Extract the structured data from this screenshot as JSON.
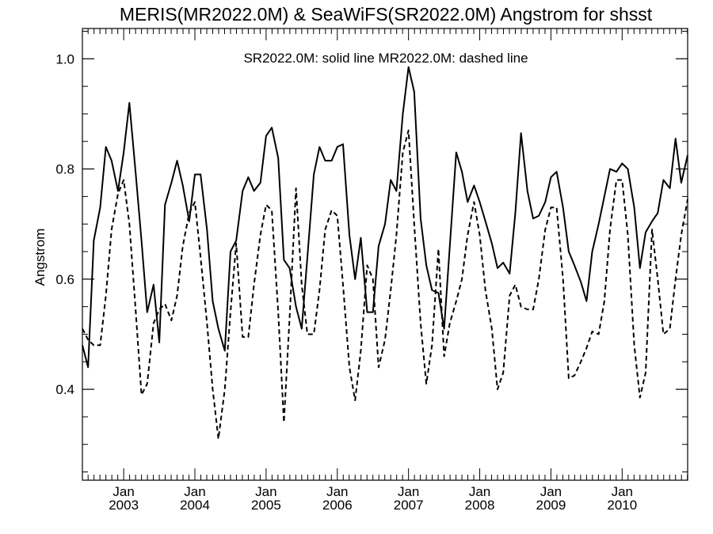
{
  "chart_data": {
    "type": "line",
    "title": "MERIS(MR2022.0M) & SeaWiFS(SR2022.0M)  Angstrom for shsst",
    "ylabel": "Angstrom",
    "legend_note": "SR2022.0M: solid line   MR2022.0M: dashed line",
    "xlim": [
      2002.42,
      2010.92
    ],
    "ylim": [
      0.235,
      1.055
    ],
    "y_ticks": [
      0.4,
      0.6,
      0.8,
      1.0
    ],
    "y_tick_labels": [
      "0.4",
      "0.6",
      "0.8",
      "1.0"
    ],
    "x_ticks": [
      {
        "x": 2003.0,
        "month": "Jan",
        "year": "2003"
      },
      {
        "x": 2004.0,
        "month": "Jan",
        "year": "2004"
      },
      {
        "x": 2005.0,
        "month": "Jan",
        "year": "2005"
      },
      {
        "x": 2006.0,
        "month": "Jan",
        "year": "2006"
      },
      {
        "x": 2007.0,
        "month": "Jan",
        "year": "2007"
      },
      {
        "x": 2008.0,
        "month": "Jan",
        "year": "2008"
      },
      {
        "x": 2009.0,
        "month": "Jan",
        "year": "2009"
      },
      {
        "x": 2010.0,
        "month": "Jan",
        "year": "2010"
      }
    ],
    "x_minor_per_year": 12,
    "y_minor_step": 0.05,
    "grid": false,
    "series": [
      {
        "name": "SR2022.0M",
        "style": "solid",
        "color": "#000000",
        "x": [
          2002.42,
          2002.5,
          2002.58,
          2002.67,
          2002.75,
          2002.83,
          2002.92,
          2003.0,
          2003.08,
          2003.17,
          2003.25,
          2003.33,
          2003.42,
          2003.5,
          2003.58,
          2003.67,
          2003.75,
          2003.83,
          2003.92,
          2004.0,
          2004.08,
          2004.17,
          2004.25,
          2004.33,
          2004.42,
          2004.5,
          2004.58,
          2004.67,
          2004.75,
          2004.83,
          2004.92,
          2005.0,
          2005.08,
          2005.17,
          2005.25,
          2005.33,
          2005.42,
          2005.5,
          2005.58,
          2005.67,
          2005.75,
          2005.83,
          2005.92,
          2006.0,
          2006.08,
          2006.17,
          2006.25,
          2006.33,
          2006.42,
          2006.5,
          2006.58,
          2006.67,
          2006.75,
          2006.83,
          2006.92,
          2007.0,
          2007.08,
          2007.17,
          2007.25,
          2007.33,
          2007.42,
          2007.5,
          2007.58,
          2007.67,
          2007.75,
          2007.83,
          2007.92,
          2008.0,
          2008.08,
          2008.17,
          2008.25,
          2008.33,
          2008.42,
          2008.5,
          2008.58,
          2008.67,
          2008.75,
          2008.83,
          2008.92,
          2009.0,
          2009.08,
          2009.17,
          2009.25,
          2009.33,
          2009.42,
          2009.5,
          2009.58,
          2009.67,
          2009.75,
          2009.83,
          2009.92,
          2010.0,
          2010.08,
          2010.17,
          2010.25,
          2010.33,
          2010.42,
          2010.5,
          2010.58,
          2010.67,
          2010.75,
          2010.83,
          2010.92
        ],
        "values": [
          0.48,
          0.44,
          0.67,
          0.73,
          0.84,
          0.815,
          0.76,
          0.83,
          0.92,
          0.79,
          0.67,
          0.54,
          0.59,
          0.485,
          0.735,
          0.775,
          0.815,
          0.77,
          0.705,
          0.79,
          0.79,
          0.69,
          0.56,
          0.51,
          0.47,
          0.65,
          0.67,
          0.76,
          0.785,
          0.76,
          0.775,
          0.86,
          0.875,
          0.82,
          0.635,
          0.62,
          0.55,
          0.51,
          0.64,
          0.79,
          0.84,
          0.815,
          0.815,
          0.84,
          0.845,
          0.68,
          0.6,
          0.675,
          0.54,
          0.54,
          0.66,
          0.7,
          0.78,
          0.76,
          0.9,
          0.985,
          0.94,
          0.71,
          0.625,
          0.58,
          0.575,
          0.51,
          0.66,
          0.83,
          0.795,
          0.74,
          0.77,
          0.74,
          0.705,
          0.665,
          0.62,
          0.63,
          0.61,
          0.72,
          0.865,
          0.76,
          0.71,
          0.715,
          0.74,
          0.785,
          0.795,
          0.73,
          0.65,
          0.625,
          0.595,
          0.56,
          0.65,
          0.7,
          0.75,
          0.8,
          0.795,
          0.81,
          0.8,
          0.73,
          0.62,
          0.685,
          0.705,
          0.72,
          0.78,
          0.765,
          0.855,
          0.775,
          0.825
        ]
      },
      {
        "name": "MR2022.0M",
        "style": "dashed",
        "color": "#000000",
        "x": [
          2002.42,
          2002.5,
          2002.58,
          2002.67,
          2002.75,
          2002.83,
          2002.92,
          2003.0,
          2003.08,
          2003.17,
          2003.25,
          2003.33,
          2003.42,
          2003.5,
          2003.58,
          2003.67,
          2003.75,
          2003.83,
          2003.92,
          2004.0,
          2004.08,
          2004.17,
          2004.25,
          2004.33,
          2004.42,
          2004.5,
          2004.58,
          2004.67,
          2004.75,
          2004.83,
          2004.92,
          2005.0,
          2005.08,
          2005.17,
          2005.25,
          2005.33,
          2005.42,
          2005.5,
          2005.58,
          2005.67,
          2005.75,
          2005.83,
          2005.92,
          2006.0,
          2006.08,
          2006.17,
          2006.25,
          2006.33,
          2006.42,
          2006.5,
          2006.58,
          2006.67,
          2006.75,
          2006.83,
          2006.92,
          2007.0,
          2007.08,
          2007.17,
          2007.25,
          2007.33,
          2007.42,
          2007.5,
          2007.58,
          2007.67,
          2007.75,
          2007.83,
          2007.92,
          2008.0,
          2008.08,
          2008.17,
          2008.25,
          2008.33,
          2008.42,
          2008.5,
          2008.58,
          2008.67,
          2008.75,
          2008.83,
          2008.92,
          2009.0,
          2009.08,
          2009.17,
          2009.25,
          2009.33,
          2009.42,
          2009.5,
          2009.58,
          2009.67,
          2009.75,
          2009.83,
          2009.92,
          2010.0,
          2010.08,
          2010.17,
          2010.25,
          2010.33,
          2010.42,
          2010.5,
          2010.58,
          2010.67,
          2010.75,
          2010.83,
          2010.92
        ],
        "values": [
          0.51,
          0.49,
          0.48,
          0.48,
          0.57,
          0.69,
          0.755,
          0.78,
          0.7,
          0.54,
          0.39,
          0.41,
          0.52,
          0.545,
          0.555,
          0.525,
          0.57,
          0.66,
          0.72,
          0.74,
          0.64,
          0.52,
          0.4,
          0.31,
          0.4,
          0.54,
          0.665,
          0.495,
          0.495,
          0.59,
          0.68,
          0.735,
          0.725,
          0.54,
          0.34,
          0.53,
          0.765,
          0.59,
          0.5,
          0.5,
          0.58,
          0.69,
          0.725,
          0.715,
          0.59,
          0.44,
          0.38,
          0.47,
          0.625,
          0.6,
          0.44,
          0.49,
          0.58,
          0.68,
          0.83,
          0.87,
          0.7,
          0.52,
          0.41,
          0.48,
          0.655,
          0.46,
          0.52,
          0.56,
          0.6,
          0.68,
          0.74,
          0.68,
          0.58,
          0.51,
          0.4,
          0.43,
          0.57,
          0.59,
          0.55,
          0.545,
          0.545,
          0.6,
          0.69,
          0.73,
          0.73,
          0.6,
          0.42,
          0.425,
          0.45,
          0.475,
          0.505,
          0.5,
          0.56,
          0.69,
          0.78,
          0.78,
          0.68,
          0.48,
          0.385,
          0.43,
          0.69,
          0.6,
          0.5,
          0.51,
          0.6,
          0.68,
          0.745
        ]
      }
    ]
  }
}
